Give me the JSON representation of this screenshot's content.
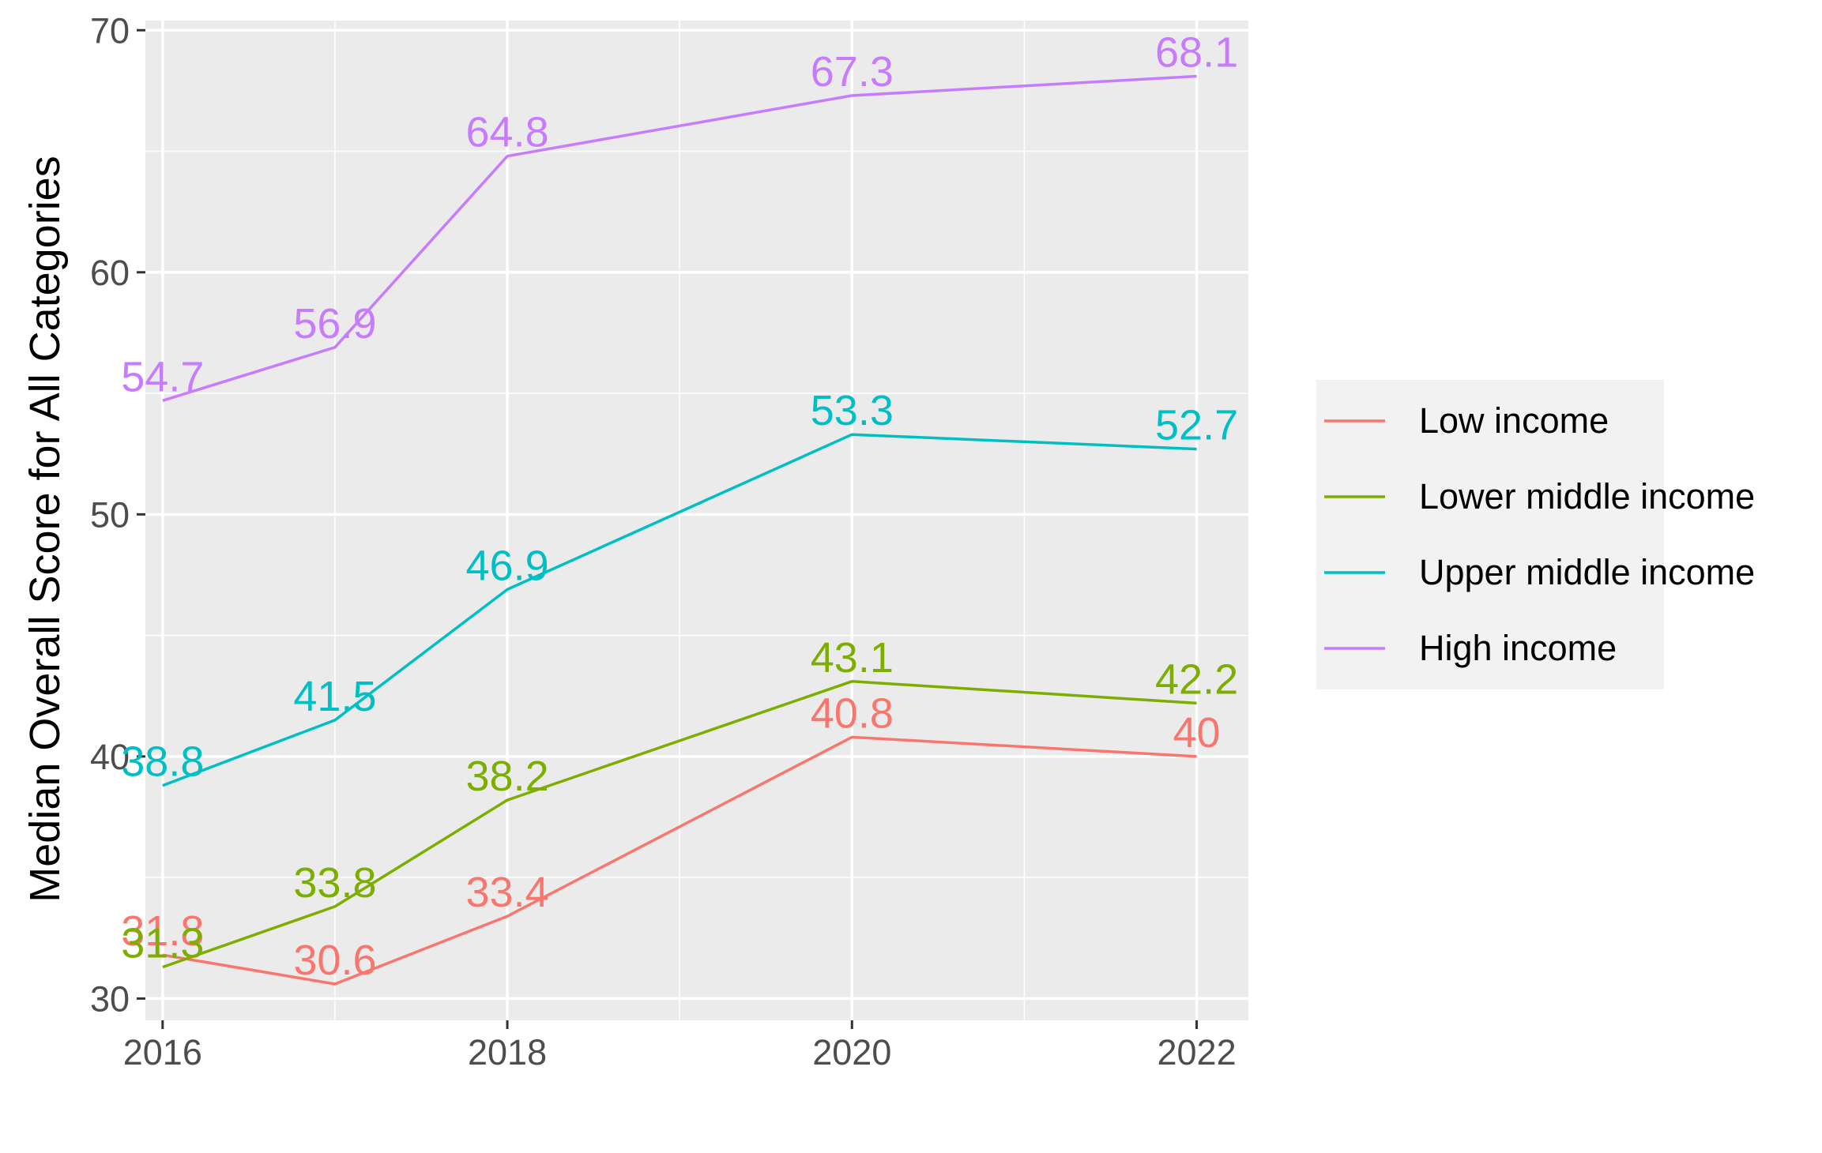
{
  "chart_data": {
    "type": "line",
    "ylabel": "Median Overall Score for All Categories",
    "xlabel": "",
    "x_ticks": [
      2016,
      2018,
      2020,
      2022
    ],
    "y_ticks": [
      30,
      40,
      50,
      60,
      70
    ],
    "xlim": [
      2015.9,
      2022.3
    ],
    "ylim": [
      29.1,
      70.4
    ],
    "grid": true,
    "legend_position": "right",
    "series": [
      {
        "name": "Low income",
        "color": "#F8766D",
        "points": [
          {
            "x": 2016,
            "y": 31.8
          },
          {
            "x": 2017,
            "y": 30.6
          },
          {
            "x": 2018,
            "y": 33.4
          },
          {
            "x": 2020,
            "y": 40.8
          },
          {
            "x": 2022,
            "y": 40
          }
        ],
        "labels": [
          "31.8",
          "30.6",
          "33.4",
          "40.8",
          "40"
        ]
      },
      {
        "name": "Lower middle income",
        "color": "#7CAE00",
        "points": [
          {
            "x": 2016,
            "y": 31.3
          },
          {
            "x": 2017,
            "y": 33.8
          },
          {
            "x": 2018,
            "y": 38.2
          },
          {
            "x": 2020,
            "y": 43.1
          },
          {
            "x": 2022,
            "y": 42.2
          }
        ],
        "labels": [
          "31.3",
          "33.8",
          "38.2",
          "43.1",
          "42.2"
        ]
      },
      {
        "name": "Upper middle income",
        "color": "#00BFC4",
        "points": [
          {
            "x": 2016,
            "y": 38.8
          },
          {
            "x": 2017,
            "y": 41.5
          },
          {
            "x": 2018,
            "y": 46.9
          },
          {
            "x": 2020,
            "y": 53.3
          },
          {
            "x": 2022,
            "y": 52.7
          }
        ],
        "labels": [
          "38.8",
          "41.5",
          "46.9",
          "53.3",
          "52.7"
        ]
      },
      {
        "name": "High income",
        "color": "#C77CFF",
        "points": [
          {
            "x": 2016,
            "y": 54.7
          },
          {
            "x": 2017,
            "y": 56.9
          },
          {
            "x": 2018,
            "y": 64.8
          },
          {
            "x": 2020,
            "y": 67.3
          },
          {
            "x": 2022,
            "y": 68.1
          }
        ],
        "labels": [
          "54.7",
          "56.9",
          "64.8",
          "67.3",
          "68.1"
        ]
      }
    ]
  }
}
